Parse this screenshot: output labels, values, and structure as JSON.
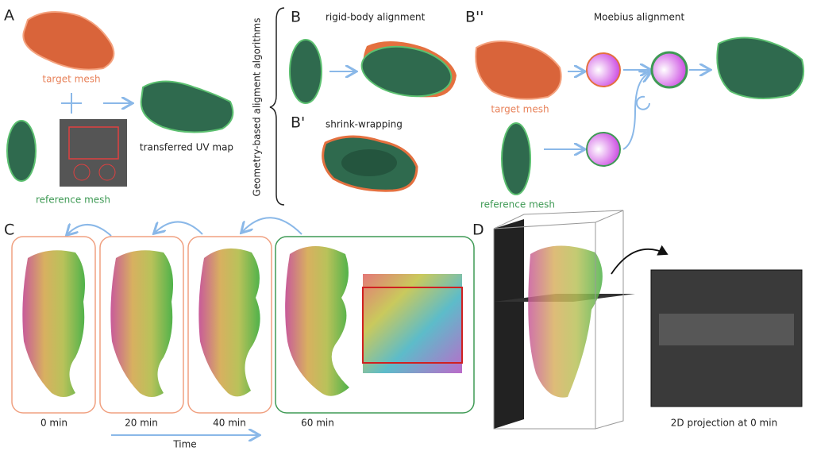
{
  "panel_a": {
    "label": "A",
    "target": "target mesh",
    "reference": "reference mesh",
    "result": "transferred UV map"
  },
  "side_label": "Geometry-based aligment algorithms",
  "panel_b": {
    "label": "B",
    "title": "rigid-body alignment"
  },
  "panel_b1": {
    "label": "B'",
    "title": "shrink-wrapping"
  },
  "panel_b2": {
    "label": "B''",
    "title": "Moebius alignment",
    "target": "target mesh",
    "reference": "reference mesh"
  },
  "panel_c": {
    "label": "C",
    "times": [
      "0 min",
      "20 min",
      "40 min",
      "60 min"
    ],
    "axis": "Time"
  },
  "panel_d": {
    "label": "D",
    "caption": "2D projection at 0 min"
  }
}
